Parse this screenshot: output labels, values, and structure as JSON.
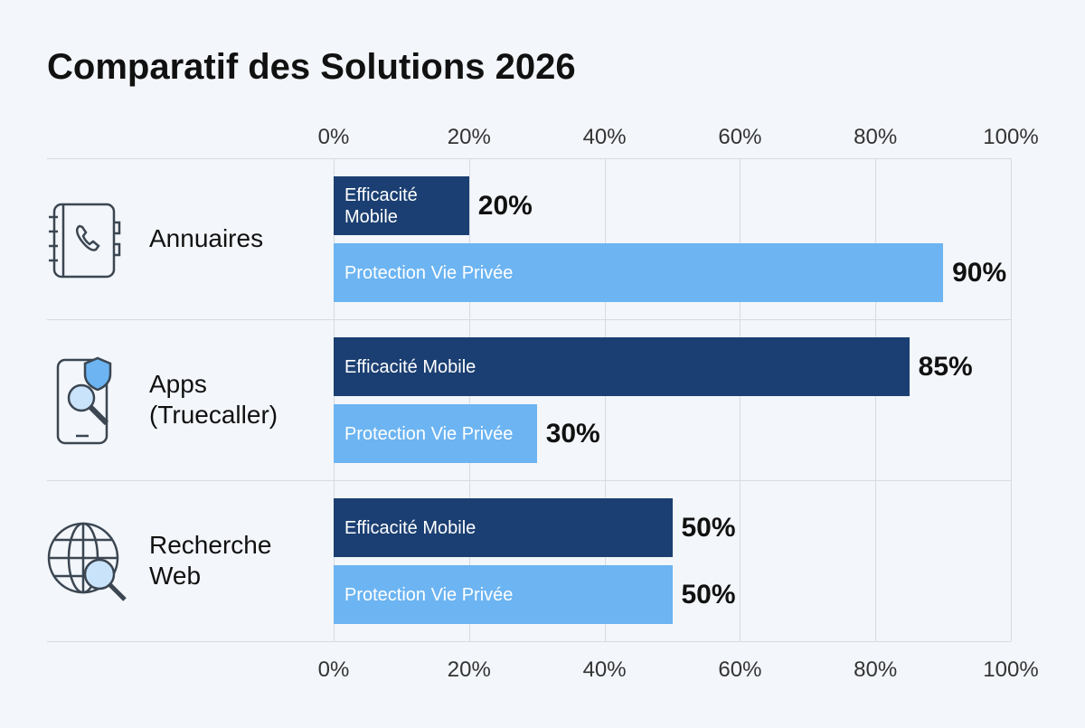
{
  "chart_data": {
    "type": "bar",
    "orientation": "horizontal",
    "title": "Comparatif des Solutions 2026",
    "categories": [
      "Annuaires",
      "Apps (Truecaller)",
      "Recherche Web"
    ],
    "series": [
      {
        "name": "Efficacité Mobile",
        "color": "#1b3f72",
        "values": [
          20,
          85,
          50
        ],
        "value_labels": [
          "20%",
          "85%",
          "50%"
        ]
      },
      {
        "name": "Protection Vie Privée",
        "color": "#6cb4f2",
        "values": [
          90,
          30,
          50
        ],
        "value_labels": [
          "90%",
          "30%",
          "50%"
        ]
      }
    ],
    "xlim": [
      0,
      100
    ],
    "xticks": [
      {
        "value": 0,
        "label": "0%"
      },
      {
        "value": 20,
        "label": "20%"
      },
      {
        "value": 40,
        "label": "40%"
      },
      {
        "value": 60,
        "label": "60%"
      },
      {
        "value": 80,
        "label": "80%"
      },
      {
        "value": 100,
        "label": "100%"
      }
    ],
    "grid": true
  }
}
